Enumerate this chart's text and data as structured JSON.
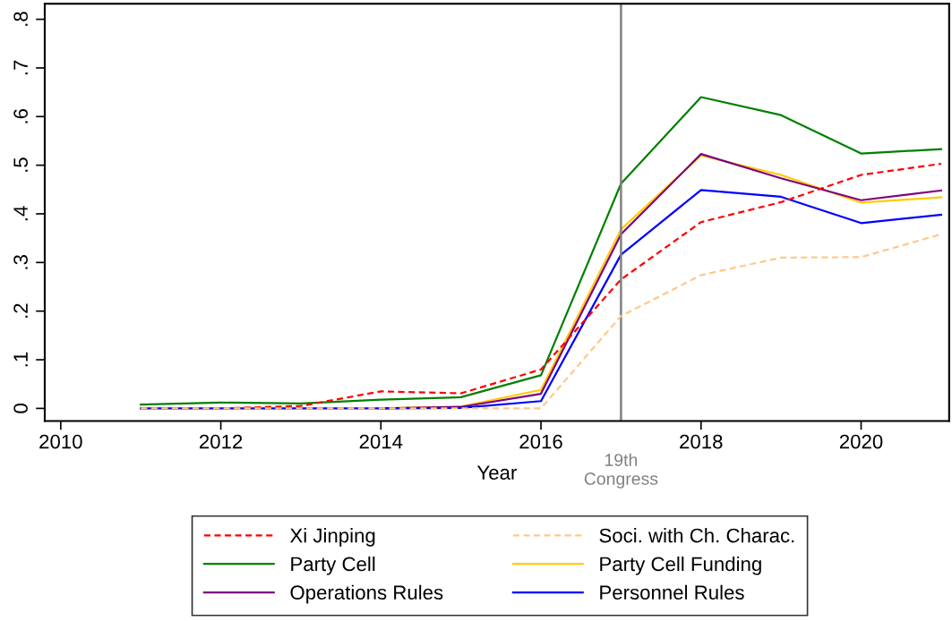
{
  "chart_data": {
    "type": "line",
    "xlabel": "Year",
    "x": [
      2011,
      2012,
      2013,
      2014,
      2015,
      2016,
      2017,
      2018,
      2019,
      2020,
      2021
    ],
    "series": [
      {
        "name": "Xi Jinping",
        "color": "#ff0000",
        "line_style": "dashed",
        "values": [
          0,
          0,
          0.005,
          0.035,
          0.031,
          0.08,
          0.265,
          0.383,
          0.424,
          0.48,
          0.503
        ]
      },
      {
        "name": "Soci. with Ch. Charac.",
        "color": "#ffc88c",
        "line_style": "dashed",
        "values": [
          0,
          0,
          0,
          0,
          0,
          0,
          0.19,
          0.274,
          0.31,
          0.311,
          0.358
        ]
      },
      {
        "name": "Party Cell",
        "color": "#008000",
        "line_style": "solid",
        "values": [
          0.008,
          0.012,
          0.01,
          0.018,
          0.023,
          0.068,
          0.462,
          0.64,
          0.603,
          0.524,
          0.533
        ]
      },
      {
        "name": "Party Cell Funding",
        "color": "#ffcc00",
        "line_style": "solid",
        "values": [
          null,
          null,
          null,
          0,
          0.004,
          0.038,
          0.368,
          0.52,
          0.48,
          0.423,
          0.434
        ]
      },
      {
        "name": "Operations Rules",
        "color": "#800080",
        "line_style": "solid",
        "values": [
          null,
          null,
          null,
          0,
          0.003,
          0.03,
          0.358,
          0.523,
          0.473,
          0.428,
          0.448
        ]
      },
      {
        "name": "Personnel Rules",
        "color": "#0000ff",
        "line_style": "solid",
        "values": [
          0,
          0,
          0,
          0,
          0.001,
          0.015,
          0.316,
          0.449,
          0.435,
          0.381,
          0.398
        ]
      }
    ],
    "xlim": [
      2009.8,
      2021.1
    ],
    "xticks": [
      2010,
      2012,
      2014,
      2016,
      2018,
      2020
    ],
    "ylim": [
      -0.026,
      0.832
    ],
    "yticks": [
      {
        "value": 0,
        "label": "0"
      },
      {
        "value": 0.1,
        "label": ".1"
      },
      {
        "value": 0.2,
        "label": ".2"
      },
      {
        "value": 0.3,
        "label": ".3"
      },
      {
        "value": 0.4,
        "label": ".4"
      },
      {
        "value": 0.5,
        "label": ".5"
      },
      {
        "value": 0.6,
        "label": ".6"
      },
      {
        "value": 0.7,
        "label": ".7"
      },
      {
        "value": 0.8,
        "label": ".8"
      }
    ],
    "ref_lines": [
      {
        "axis": "x",
        "value": 2017,
        "label": "19th\nCongress",
        "color": "#808080",
        "line_style": "solid"
      }
    ],
    "grid": false,
    "legend": "bottom",
    "marker": "none"
  }
}
